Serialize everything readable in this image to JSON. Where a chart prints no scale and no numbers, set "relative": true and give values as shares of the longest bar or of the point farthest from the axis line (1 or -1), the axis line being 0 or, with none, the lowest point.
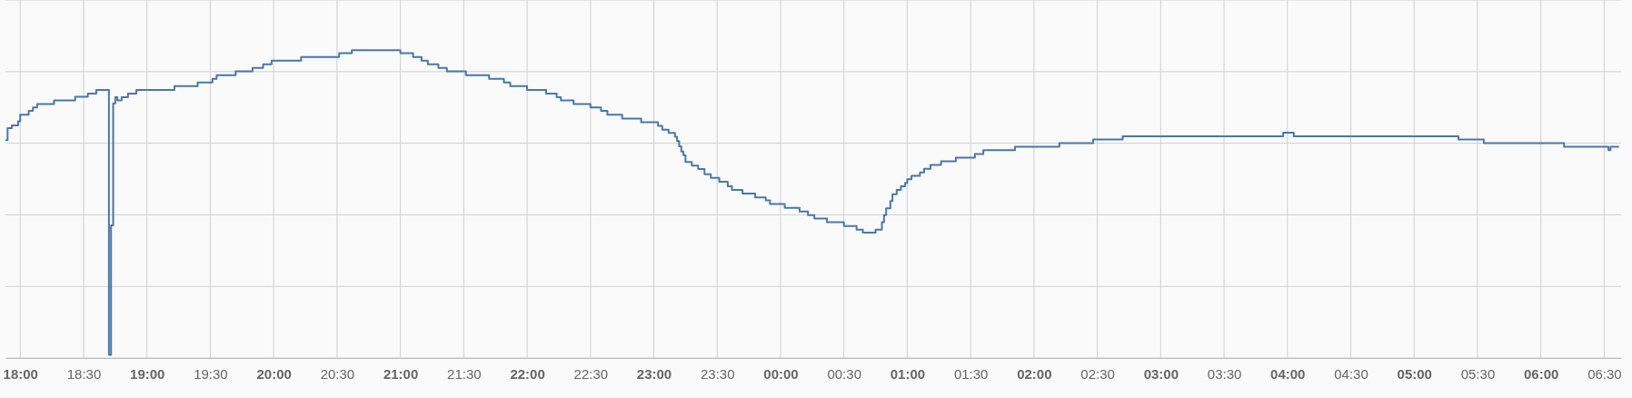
{
  "chart_data": {
    "type": "step",
    "relative": true,
    "grid": true,
    "xlim": [
      "2000-01-01T17:53",
      "2000-01-02T06:38"
    ],
    "xticks": [
      {
        "value": "2000-01-01T18:00",
        "label": "18:00"
      },
      {
        "value": "2000-01-01T18:30",
        "label": "18:30"
      },
      {
        "value": "2000-01-01T19:00",
        "label": "19:00"
      },
      {
        "value": "2000-01-01T19:30",
        "label": "19:30"
      },
      {
        "value": "2000-01-01T20:00",
        "label": "20:00"
      },
      {
        "value": "2000-01-01T20:30",
        "label": "20:30"
      },
      {
        "value": "2000-01-01T21:00",
        "label": "21:00"
      },
      {
        "value": "2000-01-01T21:30",
        "label": "21:30"
      },
      {
        "value": "2000-01-01T22:00",
        "label": "22:00"
      },
      {
        "value": "2000-01-01T22:30",
        "label": "22:30"
      },
      {
        "value": "2000-01-01T23:00",
        "label": "23:00"
      },
      {
        "value": "2000-01-01T23:30",
        "label": "23:30"
      },
      {
        "value": "2000-01-02T00:00",
        "label": "00:00"
      },
      {
        "value": "2000-01-02T00:30",
        "label": "00:30"
      },
      {
        "value": "2000-01-02T01:00",
        "label": "01:00"
      },
      {
        "value": "2000-01-02T01:30",
        "label": "01:30"
      },
      {
        "value": "2000-01-02T02:00",
        "label": "02:00"
      },
      {
        "value": "2000-01-02T02:30",
        "label": "02:30"
      },
      {
        "value": "2000-01-02T03:00",
        "label": "03:00"
      },
      {
        "value": "2000-01-02T03:30",
        "label": "03:30"
      },
      {
        "value": "2000-01-02T04:00",
        "label": "04:00"
      },
      {
        "value": "2000-01-02T04:30",
        "label": "04:30"
      },
      {
        "value": "2000-01-02T05:00",
        "label": "05:00"
      },
      {
        "value": "2000-01-02T05:30",
        "label": "05:30"
      },
      {
        "value": "2000-01-02T06:00",
        "label": "06:00"
      },
      {
        "value": "2000-01-02T06:30",
        "label": "06:30"
      }
    ],
    "series": [
      {
        "color": "#4a77a8",
        "x": [
          "2000-01-01T17:53",
          "2000-01-01T17:54",
          "2000-01-01T17:56",
          "2000-01-01T17:59",
          "2000-01-01T18:00",
          "2000-01-01T18:04",
          "2000-01-01T18:06",
          "2000-01-01T18:08",
          "2000-01-01T18:16",
          "2000-01-01T18:26",
          "2000-01-01T18:32",
          "2000-01-01T18:36",
          "2000-01-01T18:42",
          "2000-01-01T18:43",
          "2000-01-01T18:44",
          "2000-01-01T18:45",
          "2000-01-01T18:46",
          "2000-01-01T18:48",
          "2000-01-01T18:51",
          "2000-01-01T18:55",
          "2000-01-01T19:13",
          "2000-01-01T19:24",
          "2000-01-01T19:31",
          "2000-01-01T19:33",
          "2000-01-01T19:42",
          "2000-01-01T19:50",
          "2000-01-01T19:55",
          "2000-01-01T19:59",
          "2000-01-01T20:13",
          "2000-01-01T20:31",
          "2000-01-01T20:37",
          "2000-01-01T21:00",
          "2000-01-01T21:06",
          "2000-01-01T21:10",
          "2000-01-01T21:13",
          "2000-01-01T21:18",
          "2000-01-01T21:22",
          "2000-01-01T21:31",
          "2000-01-01T21:42",
          "2000-01-01T21:49",
          "2000-01-01T21:52",
          "2000-01-01T22:00",
          "2000-01-01T22:09",
          "2000-01-01T22:14",
          "2000-01-01T22:16",
          "2000-01-01T22:22",
          "2000-01-01T22:30",
          "2000-01-01T22:35",
          "2000-01-01T22:38",
          "2000-01-01T22:45",
          "2000-01-01T22:54",
          "2000-01-01T23:02",
          "2000-01-01T23:04",
          "2000-01-01T23:07",
          "2000-01-01T23:10",
          "2000-01-01T23:11",
          "2000-01-01T23:12",
          "2000-01-01T23:13",
          "2000-01-01T23:14",
          "2000-01-01T23:15",
          "2000-01-01T23:18",
          "2000-01-01T23:21",
          "2000-01-01T23:24",
          "2000-01-01T23:27",
          "2000-01-01T23:31",
          "2000-01-01T23:35",
          "2000-01-01T23:37",
          "2000-01-01T23:42",
          "2000-01-01T23:48",
          "2000-01-01T23:53",
          "2000-01-01T23:55",
          "2000-01-02T00:02",
          "2000-01-02T00:09",
          "2000-01-02T00:13",
          "2000-01-02T00:16",
          "2000-01-02T00:22",
          "2000-01-02T00:30",
          "2000-01-02T00:36",
          "2000-01-02T00:39",
          "2000-01-02T00:45",
          "2000-01-02T00:48",
          "2000-01-02T00:49",
          "2000-01-02T00:50",
          "2000-01-02T00:52",
          "2000-01-02T00:53",
          "2000-01-02T00:55",
          "2000-01-02T00:57",
          "2000-01-02T00:59",
          "2000-01-02T01:00",
          "2000-01-02T01:02",
          "2000-01-02T01:06",
          "2000-01-02T01:08",
          "2000-01-02T01:11",
          "2000-01-02T01:16",
          "2000-01-02T01:23",
          "2000-01-02T01:32",
          "2000-01-02T01:36",
          "2000-01-02T01:51",
          "2000-01-02T02:12",
          "2000-01-02T02:28",
          "2000-01-02T02:42",
          "2000-01-02T03:58",
          "2000-01-02T04:03",
          "2000-01-02T05:21",
          "2000-01-02T05:33",
          "2000-01-02T06:11",
          "2000-01-02T06:32",
          "2000-01-02T06:33",
          "2000-01-02T06:37"
        ],
        "values": [
          0.708,
          0.747,
          0.756,
          0.769,
          0.79,
          0.803,
          0.814,
          0.825,
          0.837,
          0.849,
          0.859,
          0.871,
          0.01,
          0.431,
          0.827,
          0.847,
          0.837,
          0.847,
          0.859,
          0.871,
          0.883,
          0.895,
          0.907,
          0.919,
          0.931,
          0.942,
          0.954,
          0.966,
          0.978,
          0.99,
          1.0,
          0.99,
          0.978,
          0.966,
          0.954,
          0.942,
          0.931,
          0.919,
          0.907,
          0.895,
          0.883,
          0.871,
          0.859,
          0.847,
          0.837,
          0.825,
          0.814,
          0.803,
          0.79,
          0.778,
          0.766,
          0.754,
          0.742,
          0.731,
          0.719,
          0.705,
          0.688,
          0.671,
          0.659,
          0.637,
          0.625,
          0.614,
          0.597,
          0.585,
          0.573,
          0.558,
          0.546,
          0.534,
          0.522,
          0.512,
          0.5,
          0.488,
          0.476,
          0.464,
          0.453,
          0.441,
          0.429,
          0.417,
          0.407,
          0.417,
          0.441,
          0.464,
          0.486,
          0.51,
          0.532,
          0.546,
          0.558,
          0.569,
          0.581,
          0.592,
          0.603,
          0.615,
          0.627,
          0.639,
          0.651,
          0.663,
          0.675,
          0.686,
          0.698,
          0.71,
          0.72,
          0.732,
          0.72,
          0.71,
          0.698,
          0.686,
          0.675,
          0.686,
          0.686
        ]
      }
    ]
  }
}
